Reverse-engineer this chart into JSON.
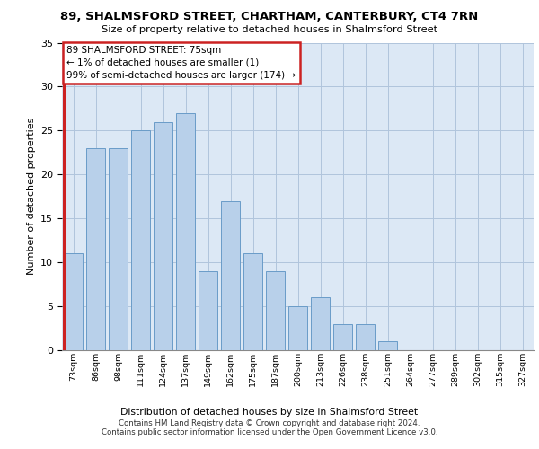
{
  "title1": "89, SHALMSFORD STREET, CHARTHAM, CANTERBURY, CT4 7RN",
  "title2": "Size of property relative to detached houses in Shalmsford Street",
  "xlabel": "Distribution of detached houses by size in Shalmsford Street",
  "ylabel": "Number of detached properties",
  "categories": [
    "73sqm",
    "86sqm",
    "98sqm",
    "111sqm",
    "124sqm",
    "137sqm",
    "149sqm",
    "162sqm",
    "175sqm",
    "187sqm",
    "200sqm",
    "213sqm",
    "226sqm",
    "238sqm",
    "251sqm",
    "264sqm",
    "277sqm",
    "289sqm",
    "302sqm",
    "315sqm",
    "327sqm"
  ],
  "values": [
    11,
    23,
    23,
    25,
    26,
    27,
    9,
    17,
    11,
    9,
    5,
    6,
    3,
    3,
    1,
    0,
    0,
    0,
    0,
    0,
    0
  ],
  "bar_color": "#b8d0ea",
  "bar_edge_color": "#6a9cc8",
  "highlight_color": "#cc2222",
  "ylim": [
    0,
    35
  ],
  "yticks": [
    0,
    5,
    10,
    15,
    20,
    25,
    30,
    35
  ],
  "annotation_line1": "89 SHALMSFORD STREET: 75sqm",
  "annotation_line2": "← 1% of detached houses are smaller (1)",
  "annotation_line3": "99% of semi-detached houses are larger (174) →",
  "annotation_box_facecolor": "#ffffff",
  "annotation_box_edgecolor": "#cc2222",
  "background_color": "#dce8f5",
  "footer1": "Contains HM Land Registry data © Crown copyright and database right 2024.",
  "footer2": "Contains public sector information licensed under the Open Government Licence v3.0."
}
